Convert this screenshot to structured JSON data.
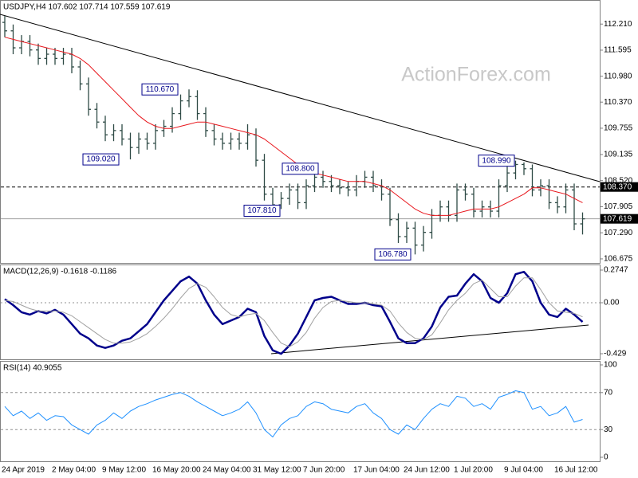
{
  "chart_data": [
    {
      "type": "ohlc",
      "title": "USDJPY,H4  107.602 107.714 107.559 107.619",
      "watermark": "ActionForex.com",
      "categories": [
        "24 Apr 2019",
        null,
        null,
        null,
        null,
        null,
        "2 May 04:00",
        null,
        null,
        null,
        null,
        null,
        "9 May 12:00",
        null,
        null,
        null,
        null,
        null,
        "16 May 20:00",
        null,
        null,
        null,
        null,
        null,
        "24 May 04:00",
        null,
        null,
        null,
        null,
        null,
        "31 May 12:00",
        null,
        null,
        null,
        null,
        null,
        "7 Jun 20:00",
        null,
        null,
        null,
        null,
        null,
        "17 Jun 04:00",
        null,
        null,
        null,
        null,
        null,
        "24 Jun 12:00",
        null,
        null,
        null,
        null,
        null,
        "1 Jul 20:00",
        null,
        null,
        null,
        null,
        null,
        "9 Jul 04:00",
        null,
        null,
        null,
        null,
        null,
        "16 Jul 12:00",
        null,
        null,
        null
      ],
      "open": [
        112.25,
        112.05,
        111.65,
        111.8,
        111.6,
        111.4,
        111.5,
        111.4,
        111.5,
        111.2,
        110.8,
        110.2,
        109.9,
        109.6,
        109.7,
        109.5,
        109.3,
        109.5,
        109.4,
        109.7,
        109.8,
        110.1,
        110.4,
        110.5,
        110.1,
        109.7,
        109.5,
        109.4,
        109.5,
        109.4,
        109.6,
        109.0,
        108.2,
        107.95,
        108.1,
        108.3,
        108.0,
        108.4,
        108.6,
        108.5,
        108.4,
        108.35,
        108.3,
        108.5,
        108.6,
        108.4,
        108.2,
        107.6,
        107.2,
        107.4,
        107.0,
        107.3,
        107.7,
        107.9,
        107.7,
        108.3,
        108.2,
        107.8,
        107.9,
        107.8,
        108.4,
        108.7,
        108.9,
        108.8,
        108.3,
        108.4,
        108.0,
        107.9,
        108.3,
        107.5
      ],
      "high": [
        112.4,
        112.2,
        111.95,
        111.95,
        111.75,
        111.65,
        111.65,
        111.65,
        111.65,
        111.35,
        110.95,
        110.35,
        110.05,
        109.85,
        109.85,
        109.65,
        109.65,
        109.65,
        109.85,
        109.95,
        110.25,
        110.55,
        110.67,
        110.65,
        110.25,
        109.85,
        109.65,
        109.65,
        109.65,
        109.85,
        109.75,
        109.15,
        108.35,
        108.25,
        108.45,
        108.45,
        108.55,
        108.8,
        108.75,
        108.65,
        108.55,
        108.5,
        108.65,
        108.75,
        108.75,
        108.55,
        108.35,
        107.75,
        107.55,
        107.55,
        107.45,
        107.85,
        108.05,
        108.05,
        108.45,
        108.45,
        108.35,
        108.05,
        108.05,
        108.55,
        108.85,
        108.99,
        108.95,
        108.9,
        108.55,
        108.55,
        108.15,
        108.45,
        108.45,
        107.77
      ],
      "low": [
        111.9,
        111.5,
        111.5,
        111.45,
        111.25,
        111.25,
        111.25,
        111.25,
        111.05,
        110.65,
        110.05,
        109.75,
        109.45,
        109.45,
        109.35,
        109.02,
        109.15,
        109.25,
        109.25,
        109.55,
        109.65,
        109.95,
        110.25,
        109.95,
        109.55,
        109.35,
        109.25,
        109.25,
        109.25,
        109.25,
        108.85,
        108.05,
        107.81,
        107.85,
        107.95,
        107.85,
        107.85,
        108.25,
        108.35,
        108.25,
        108.2,
        108.15,
        108.15,
        108.35,
        108.25,
        108.05,
        107.45,
        107.05,
        107.05,
        106.78,
        106.85,
        107.15,
        107.55,
        107.55,
        107.55,
        108.05,
        107.65,
        107.65,
        107.65,
        107.65,
        108.25,
        108.55,
        108.65,
        108.15,
        108.15,
        107.85,
        107.75,
        107.75,
        107.35,
        107.25
      ],
      "close": [
        112.05,
        111.65,
        111.8,
        111.6,
        111.4,
        111.5,
        111.4,
        111.5,
        111.2,
        110.8,
        110.2,
        109.9,
        109.6,
        109.7,
        109.5,
        109.3,
        109.5,
        109.4,
        109.7,
        109.8,
        110.1,
        110.4,
        110.5,
        110.1,
        109.7,
        109.5,
        109.4,
        109.5,
        109.4,
        109.6,
        109.0,
        108.2,
        107.95,
        108.1,
        108.3,
        108.0,
        108.4,
        108.6,
        108.5,
        108.4,
        108.35,
        108.3,
        108.5,
        108.6,
        108.4,
        108.2,
        107.6,
        107.2,
        107.4,
        107.0,
        107.3,
        107.7,
        107.9,
        107.7,
        108.3,
        108.2,
        107.8,
        107.9,
        107.8,
        108.4,
        108.7,
        108.9,
        108.8,
        108.3,
        108.4,
        108.0,
        107.9,
        108.3,
        107.5,
        107.619
      ],
      "color": "#2e4a45",
      "series": [
        {
          "color": "#e8161c",
          "values": [
            111.9,
            111.85,
            111.8,
            111.75,
            111.7,
            111.65,
            111.6,
            111.55,
            111.5,
            111.4,
            111.25,
            111.05,
            110.85,
            110.65,
            110.45,
            110.25,
            110.05,
            109.9,
            109.8,
            109.75,
            109.75,
            109.8,
            109.85,
            109.9,
            109.9,
            109.85,
            109.8,
            109.75,
            109.7,
            109.65,
            109.6,
            109.5,
            109.35,
            109.2,
            109.05,
            108.9,
            108.8,
            108.7,
            108.65,
            108.6,
            108.55,
            108.5,
            108.5,
            108.5,
            108.45,
            108.4,
            108.3,
            108.15,
            108.0,
            107.85,
            107.75,
            107.7,
            107.7,
            107.7,
            107.75,
            107.8,
            107.85,
            107.85,
            107.85,
            107.9,
            108.0,
            108.1,
            108.2,
            108.35,
            108.35,
            108.3,
            108.25,
            108.2,
            108.1,
            108.0
          ]
        }
      ],
      "ylim": [
        106.58,
        112.74
      ],
      "yticks": [
        {
          "value": 112.21,
          "label": "112.210"
        },
        111.595,
        {
          "value": 110.98,
          "label": "110.980"
        },
        {
          "value": 110.37,
          "label": "110.370"
        },
        109.755,
        109.135,
        {
          "value": 108.52,
          "label": "108.520"
        },
        107.905,
        {
          "value": 107.29,
          "label": "107.290"
        },
        106.675
      ],
      "level": {
        "value": 108.37,
        "label": "108.370"
      },
      "last": 107.619,
      "annotations": [
        {
          "value": 110.67,
          "label": "110.670"
        },
        {
          "value": 109.02,
          "label": "109.020"
        },
        {
          "value": 108.8,
          "label": "108.800"
        },
        {
          "value": 107.81,
          "label": "107.810"
        },
        {
          "value": 106.78,
          "label": "106.780"
        },
        {
          "value": 108.99,
          "label": "108.990"
        }
      ]
    },
    {
      "type": "line",
      "title": "MACD(12,26,9) -0.1618 -0.1186",
      "series": [
        {
          "color": "#00008b",
          "width": 2.5,
          "values": [
            0.03,
            -0.02,
            -0.08,
            -0.1,
            -0.07,
            -0.09,
            -0.06,
            -0.1,
            -0.18,
            -0.26,
            -0.3,
            -0.36,
            -0.38,
            -0.36,
            -0.32,
            -0.3,
            -0.24,
            -0.18,
            -0.08,
            0.02,
            0.1,
            0.18,
            0.22,
            0.16,
            0.02,
            -0.1,
            -0.18,
            -0.15,
            -0.12,
            -0.05,
            -0.08,
            -0.28,
            -0.4,
            -0.43,
            -0.36,
            -0.26,
            -0.12,
            0.02,
            0.04,
            0.05,
            0.02,
            -0.01,
            -0.01,
            0.0,
            -0.02,
            -0.03,
            -0.16,
            -0.3,
            -0.34,
            -0.34,
            -0.3,
            -0.2,
            -0.04,
            0.05,
            0.06,
            0.16,
            0.24,
            0.18,
            0.04,
            0.0,
            0.08,
            0.24,
            0.26,
            0.18,
            0.0,
            -0.1,
            -0.12,
            -0.05,
            -0.1,
            -0.1618
          ]
        },
        {
          "color": "#a0a0a0",
          "width": 1,
          "values": [
            0.02,
            0.01,
            -0.02,
            -0.05,
            -0.07,
            -0.07,
            -0.07,
            -0.08,
            -0.11,
            -0.16,
            -0.21,
            -0.26,
            -0.31,
            -0.34,
            -0.34,
            -0.33,
            -0.3,
            -0.26,
            -0.2,
            -0.13,
            -0.05,
            0.04,
            0.12,
            0.16,
            0.13,
            0.05,
            -0.04,
            -0.1,
            -0.12,
            -0.1,
            -0.09,
            -0.15,
            -0.25,
            -0.34,
            -0.37,
            -0.33,
            -0.25,
            -0.13,
            -0.04,
            0.01,
            0.02,
            0.01,
            0.0,
            0.0,
            -0.01,
            -0.02,
            -0.07,
            -0.17,
            -0.25,
            -0.3,
            -0.31,
            -0.27,
            -0.17,
            -0.06,
            0.02,
            0.08,
            0.16,
            0.19,
            0.12,
            0.05,
            0.05,
            0.14,
            0.21,
            0.21,
            0.11,
            0.0,
            -0.07,
            -0.08,
            -0.09,
            -0.1186
          ]
        }
      ],
      "ylim": [
        -0.476,
        0.315
      ],
      "yticks": [
        0.2747,
        {
          "value": 0,
          "label": "0.00"
        },
        -0.429
      ],
      "zero_line": true
    },
    {
      "type": "line",
      "title": "RSI(14) 40.9055",
      "series": [
        {
          "color": "#1e90ff",
          "width": 1,
          "values": [
            55,
            45,
            50,
            42,
            48,
            40,
            45,
            44,
            35,
            30,
            25,
            35,
            40,
            48,
            42,
            50,
            55,
            58,
            62,
            65,
            68,
            70,
            66,
            60,
            55,
            50,
            45,
            48,
            52,
            60,
            48,
            30,
            22,
            35,
            42,
            45,
            55,
            60,
            58,
            52,
            50,
            48,
            55,
            58,
            48,
            42,
            30,
            25,
            35,
            30,
            42,
            52,
            58,
            55,
            66,
            64,
            55,
            58,
            52,
            65,
            68,
            72,
            70,
            52,
            55,
            45,
            48,
            55,
            38,
            40.9055
          ]
        }
      ],
      "ylim": [
        0,
        100
      ],
      "yticks": [
        100,
        70,
        30,
        0
      ],
      "grid": true
    }
  ]
}
